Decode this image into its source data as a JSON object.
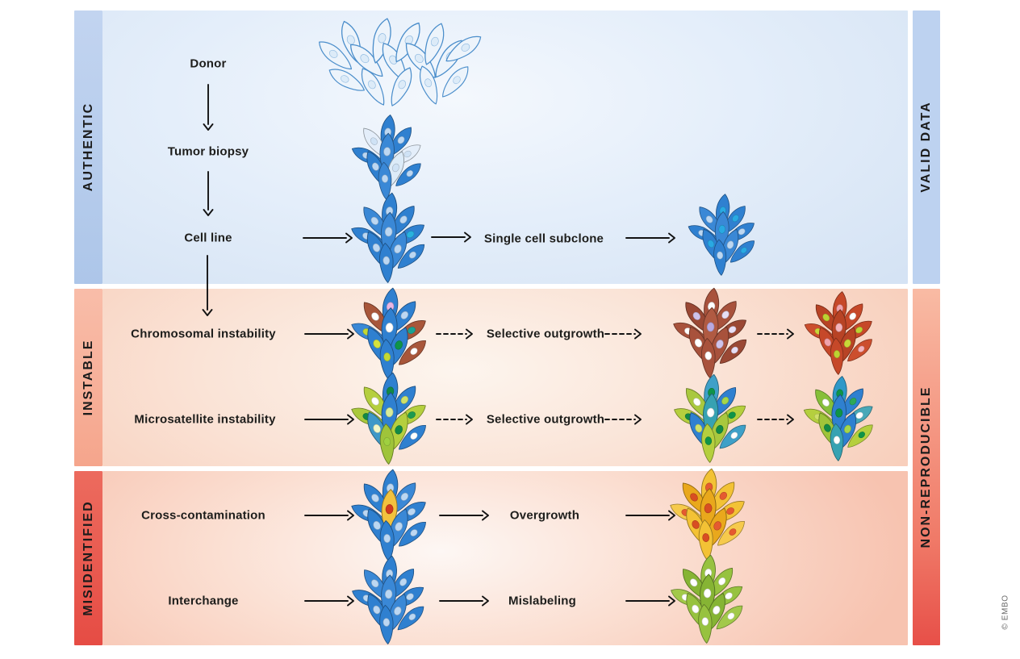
{
  "figure": {
    "copyright": "© EMBO",
    "sidebars": {
      "authentic": "AUTHENTIC",
      "instable": "INSTABLE",
      "misidentified": "MISIDENTIFIED",
      "valid_data": "VALID DATA",
      "non_reproducible": "NON-REPRODUCIBLE"
    },
    "labels": {
      "donor": "Donor",
      "tumor_biopsy": "Tumor biopsy",
      "cell_line": "Cell line",
      "single_cell_subclone": "Single cell subclone",
      "chromosomal_instability": "Chromosomal instability",
      "selective_outgrowth": "Selective outgrowth",
      "microsatellite_instability": "Microsatellite instability",
      "cross_contamination": "Cross-contamination",
      "overgrowth": "Overgrowth",
      "interchange": "Interchange",
      "mislabeling": "Mislabeling"
    },
    "colors": {
      "authentic_bar_top": "#c2d4f0",
      "authentic_bar_bottom": "#adc6e9",
      "valid_bar": "#bdd2f0",
      "instable_bar_top": "#f9bda9",
      "instable_bar_bottom": "#f5a58c",
      "nonrepro_top": "#f9bba4",
      "nonrepro_bottom": "#e74f48",
      "misidentified_bar_top": "#ec6b5e",
      "misidentified_bar_bottom": "#e64c44",
      "band_blue_center": "#f4f8fd",
      "band_blue_edge": "#d5e3f4",
      "band_peach_center": "#fdf5ee",
      "band_peach_edge": "#f8cfbc",
      "band_pink_center": "#fdf7f4",
      "band_pink_edge": "#f7c3b0",
      "arrow": "#121212",
      "label_text": "#1d1d1b",
      "cell_blue": "#2f80d0",
      "cell_brown": "#a8563a",
      "cell_red": "#c64829",
      "cell_yellow": "#f3c235",
      "cell_green": "#97c23f",
      "cell_yellow_green": "#b5cf3e"
    },
    "clusters": {
      "donor": {
        "style": "outline",
        "body": "#edf4fb",
        "stroke": "#4b8ecb",
        "nucleus": "#dcebf8",
        "nucleus_stroke": "#8cb8e0"
      },
      "tumor_biopsy": {
        "cells": [
          "#2f80d0",
          "#e4eefa",
          "#2f80d0",
          "#2f80d0",
          "#3a88d6",
          "#e4eefa",
          "#2f80d0",
          "#dcebf8",
          "#2f80d0",
          "#3a88d6"
        ],
        "nuclei": [
          "#bcd7f2",
          "#cfe2f5",
          "#bcd7f2",
          "#bcd7f2",
          "#bcd7f2",
          "#cfe2f5",
          "#bcd7f2",
          "#cfe2f5",
          "#bcd7f2",
          "#bcd7f2"
        ]
      },
      "cell_line": {
        "cells": [
          "#2f80d0",
          "#3a88d6",
          "#2f80d0",
          "#2f80d0",
          "#3a88d6",
          "#2f80d0",
          "#2f80d0",
          "#3a88d6",
          "#2f80d0",
          "#2f80d0"
        ],
        "nuclei": [
          "#bcd7f2",
          "#bcd7f2",
          "#bcd7f2",
          "#bcd7f2",
          "#bcd7f2",
          "#29b2dd",
          "#bcd7f2",
          "#bcd7f2",
          "#bcd7f2",
          "#bcd7f2"
        ]
      },
      "single_cell_subclone": {
        "cells": [
          "#2f80d0",
          "#3a88d6",
          "#2f80d0",
          "#2f80d0",
          "#3a88d6",
          "#2f80d0",
          "#2f80d0",
          "#3a88d6",
          "#2f80d0",
          "#2f80d0"
        ],
        "nuclei": [
          "#29a9e2",
          "#bcd7f2",
          "#29a9e2",
          "#bcd7f2",
          "#29a9e2",
          "#bcd7f2",
          "#29a9e2",
          "#bcd7f2",
          "#29a9e2",
          "#bcd7f2"
        ]
      },
      "chromosomal_instability": {
        "cells": [
          "#2f80d0",
          "#a8563a",
          "#2f80d0",
          "#3a88d6",
          "#2f80d0",
          "#a8563a",
          "#2f80d0",
          "#2f80d0",
          "#a8563a",
          "#2f80d0"
        ],
        "nuclei": [
          "#e9b6e3",
          "#ffffff",
          "#bcd7f2",
          "#c3d832",
          "#ffffff",
          "#18a394",
          "#d6e23c",
          "#0f9448",
          "#ffffff",
          "#c3d832"
        ]
      },
      "selective_outgrowth_1": {
        "cells": [
          "#a8523c",
          "#9a4834",
          "#a8523c",
          "#a8523c",
          "#b05a42",
          "#9a4834",
          "#a8523c",
          "#a8523c",
          "#9a4834",
          "#a8523c"
        ],
        "nuclei": [
          "#ffffff",
          "#cfc3ea",
          "#e6def5",
          "#ffffff",
          "#b9a9e0",
          "#e8dff6",
          "#ffffff",
          "#cfc3ea",
          "#e6def5",
          "#ffffff"
        ]
      },
      "selective_outgrowth_1_final": {
        "cells": [
          "#c64829",
          "#b84325",
          "#c64829",
          "#cc4e2d",
          "#b84325",
          "#c64829",
          "#c64829",
          "#b84325",
          "#cc4e2d",
          "#c64829"
        ],
        "nuclei": [
          "#f0a3ad",
          "#bcd232",
          "#ffffff",
          "#c8d838",
          "#f4b3bb",
          "#bcd232",
          "#f0a3ad",
          "#c8d838",
          "#f4b3bb",
          "#bcd232"
        ]
      },
      "microsatellite_instability": {
        "cells": [
          "#2f80d0",
          "#b5cf3e",
          "#2f80d0",
          "#aac93c",
          "#2f80d0",
          "#b5cf3e",
          "#3f98c8",
          "#b5cf3e",
          "#2f80d0",
          "#9fc43a"
        ],
        "nuclei": [
          "#128a45",
          "#ffffff",
          "#cfe069",
          "#128a45",
          "#d8ec9a",
          "#1d9a50",
          "#f3f7c8",
          "#128a45",
          "#ffffff",
          "#9fd040"
        ]
      },
      "selective_outgrowth_2": {
        "cells": [
          "#3fa0c8",
          "#a9c83e",
          "#2f80d0",
          "#b5cf3e",
          "#37a2b2",
          "#b5cf3e",
          "#2f80d0",
          "#a9c83e",
          "#3fa0c8",
          "#b5cf3e"
        ],
        "nuclei": [
          "#0f9448",
          "#ffffff",
          "#a5d64a",
          "#128a45",
          "#ffffff",
          "#0f9448",
          "#cfe069",
          "#128a45",
          "#ffffff",
          "#0f9448"
        ]
      },
      "selective_outgrowth_2_final": {
        "cells": [
          "#2f98c8",
          "#86bf3a",
          "#2f80d0",
          "#b5cf3e",
          "#2f80d0",
          "#48a8b8",
          "#9fc43a",
          "#2f80d0",
          "#b5cf3e",
          "#37a2b2"
        ],
        "nuclei": [
          "#0f9448",
          "#ffffff",
          "#2fa858",
          "#cfe069",
          "#0f9448",
          "#ffffff",
          "#128a45",
          "#a5d64a",
          "#0f9448",
          "#ffffff"
        ]
      },
      "cross_contamination": {
        "cells": [
          "#2f80d0",
          "#2f80d0",
          "#3a88d6",
          "#2f80d0",
          "#f2c23e",
          "#2f80d0",
          "#2f80d0",
          "#3a88d6",
          "#2f80d0",
          "#2f80d0"
        ],
        "nuclei": [
          "#bcd7f2",
          "#bcd7f2",
          "#bcd7f2",
          "#bcd7f2",
          "#d03a1e",
          "#bcd7f2",
          "#bcd7f2",
          "#bcd7f2",
          "#bcd7f2",
          "#bcd7f2"
        ]
      },
      "overgrowth": {
        "cells": [
          "#f3c235",
          "#e9a81c",
          "#f3c235",
          "#f6ca4c",
          "#e9a81c",
          "#f3c235",
          "#f3c235",
          "#e9a81c",
          "#f6ca4c",
          "#f3c235"
        ],
        "nuclei": [
          "#e55a30",
          "#d84e22",
          "#e55a30",
          "#e55a30",
          "#d84e22",
          "#e55a30",
          "#d84e22",
          "#e55a30",
          "#e55a30",
          "#d84e22"
        ]
      },
      "interchange": {
        "cells": [
          "#2f80d0",
          "#3a88d6",
          "#2f80d0",
          "#2f80d0",
          "#3a88d6",
          "#2f80d0",
          "#2f80d0",
          "#3a88d6",
          "#2f80d0",
          "#2f80d0"
        ],
        "nuclei": [
          "#bcd7f2",
          "#bcd7f2",
          "#bcd7f2",
          "#bcd7f2",
          "#bcd7f2",
          "#bcd7f2",
          "#bcd7f2",
          "#bcd7f2",
          "#bcd7f2",
          "#bcd7f2"
        ]
      },
      "mislabeling": {
        "cells": [
          "#97c23f",
          "#86b434",
          "#97c23f",
          "#a2c94a",
          "#86b434",
          "#97c23f",
          "#97c23f",
          "#86b434",
          "#a2c94a",
          "#97c23f"
        ],
        "nuclei": [
          "#ffffff",
          "#ffffff",
          "#ffffff",
          "#ffffff",
          "#ffffff",
          "#ffffff",
          "#ffffff",
          "#ffffff",
          "#ffffff",
          "#ffffff"
        ]
      }
    }
  }
}
